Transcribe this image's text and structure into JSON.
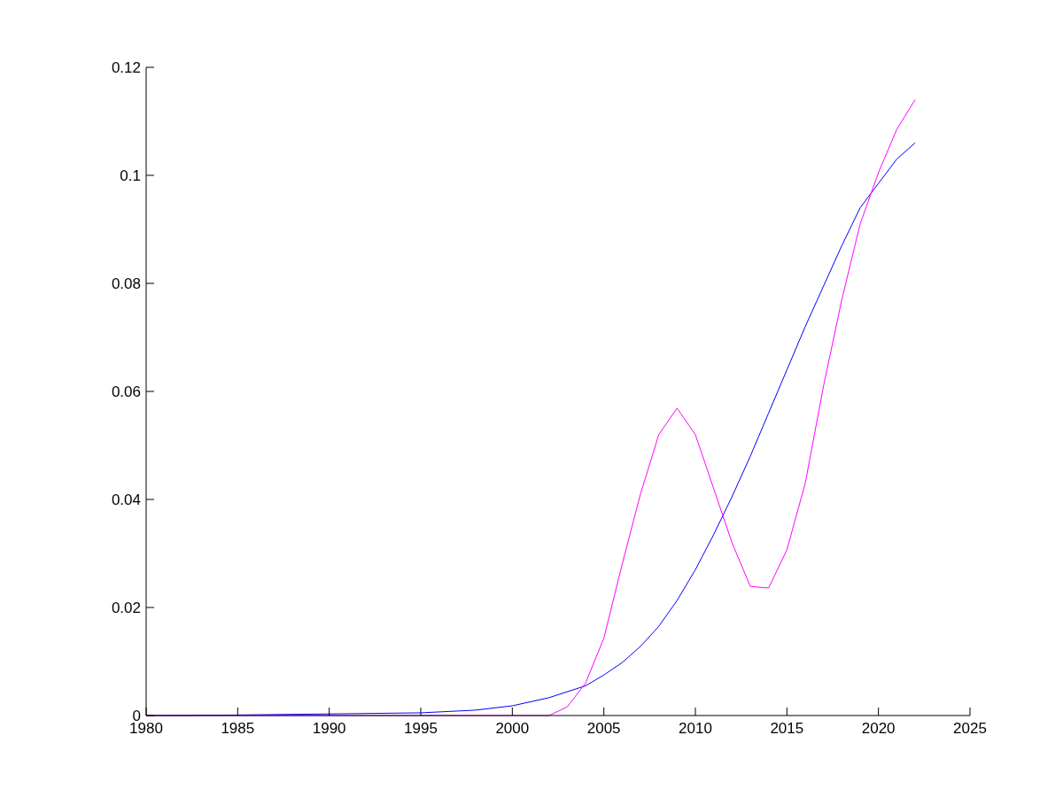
{
  "chart_data": {
    "type": "line",
    "xlim": [
      1980,
      2025
    ],
    "xticks": [
      1980,
      1985,
      1990,
      1995,
      2000,
      2005,
      2010,
      2015,
      2020,
      2025
    ],
    "ylim": [
      0,
      0.12
    ],
    "yticks": [
      0,
      0.02,
      0.04,
      0.06,
      0.08,
      0.1,
      0.12
    ],
    "series": [
      {
        "color": "#0000ff",
        "x": [
          1980,
          1985,
          1990,
          1995,
          1998,
          2000,
          2002,
          2004,
          2005,
          2006,
          2007,
          2008,
          2009,
          2010,
          2011,
          2012,
          2013,
          2014,
          2015,
          2016,
          2017,
          2018,
          2019,
          2020,
          2021,
          2022
        ],
        "values": [
          0,
          0.0001,
          0.0003,
          0.0005,
          0.001,
          0.0018,
          0.0033,
          0.0055,
          0.0075,
          0.0098,
          0.0128,
          0.0165,
          0.0213,
          0.027,
          0.0335,
          0.0405,
          0.048,
          0.056,
          0.064,
          0.072,
          0.0795,
          0.087,
          0.094,
          0.0985,
          0.103,
          0.106
        ]
      },
      {
        "color": "#ff00ff",
        "x": [
          1980,
          2002,
          2003,
          2004,
          2005,
          2006,
          2007,
          2008,
          2009,
          2010,
          2011,
          2012,
          2013,
          2014,
          2015,
          2016,
          2017,
          2018,
          2019,
          2020,
          2021,
          2022
        ],
        "values": [
          0,
          0,
          0.0016,
          0.006,
          0.0143,
          0.028,
          0.041,
          0.052,
          0.0569,
          0.052,
          0.042,
          0.032,
          0.0239,
          0.0236,
          0.0307,
          0.043,
          0.061,
          0.077,
          0.091,
          0.1005,
          0.1085,
          0.114
        ]
      }
    ]
  }
}
